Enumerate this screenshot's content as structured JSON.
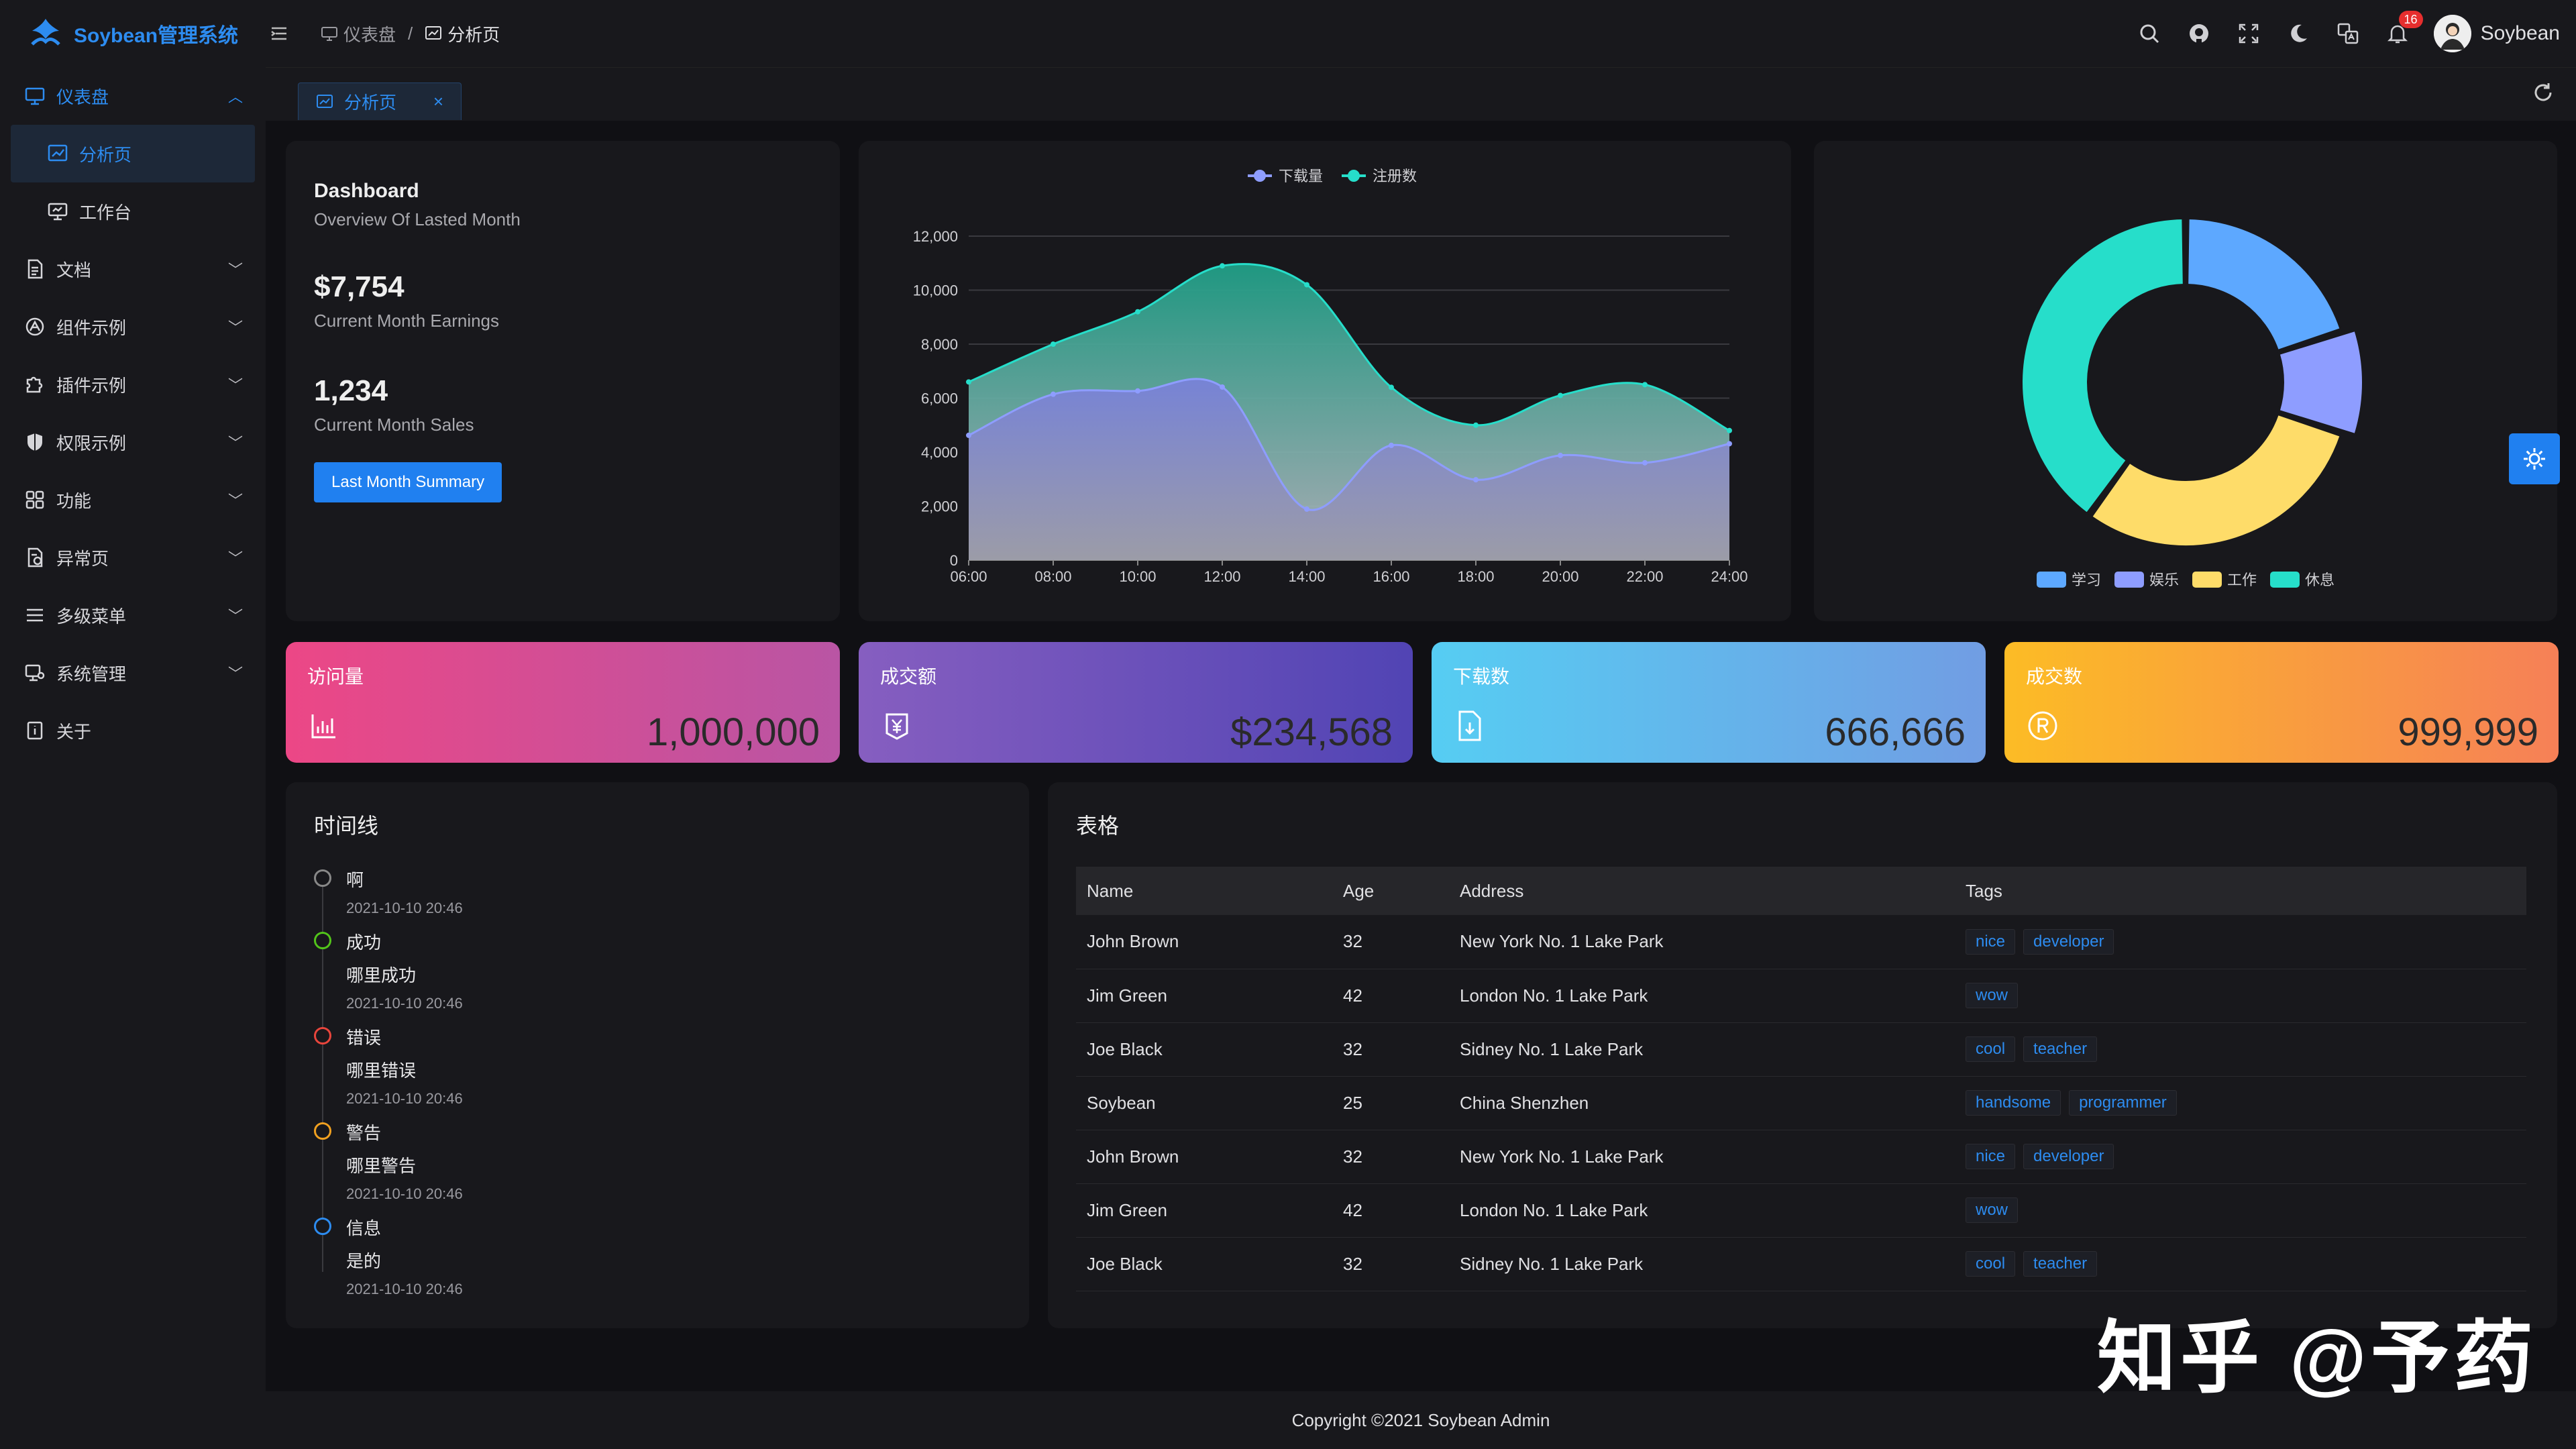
{
  "app": {
    "title": "Soybean管理系统"
  },
  "breadcrumb": [
    {
      "label": "仪表盘"
    },
    {
      "label": "分析页"
    }
  ],
  "header": {
    "notification_count": "16",
    "username": "Soybean"
  },
  "sidebar": {
    "items": [
      {
        "label": "仪表盘",
        "icon": "monitor-icon",
        "expanded": true
      },
      {
        "label": "分析页",
        "icon": "chart-board-icon",
        "selected": true
      },
      {
        "label": "工作台",
        "icon": "desktop-icon"
      },
      {
        "label": "文档",
        "icon": "document-icon"
      },
      {
        "label": "组件示例",
        "icon": "component-icon"
      },
      {
        "label": "插件示例",
        "icon": "puzzle-icon"
      },
      {
        "label": "权限示例",
        "icon": "shield-icon"
      },
      {
        "label": "功能",
        "icon": "grid-icon"
      },
      {
        "label": "异常页",
        "icon": "exception-icon"
      },
      {
        "label": "多级菜单",
        "icon": "list-icon"
      },
      {
        "label": "系统管理",
        "icon": "settings-monitor-icon"
      },
      {
        "label": "关于",
        "icon": "info-book-icon"
      }
    ]
  },
  "tabs": [
    {
      "label": "分析页",
      "close": "×"
    }
  ],
  "dashboard": {
    "title": "Dashboard",
    "subtitle": "Overview Of Lasted Month",
    "earnings": "$7,754",
    "earnings_label": "Current Month Earnings",
    "sales": "1,234",
    "sales_label": "Current Month Sales",
    "button": "Last Month Summary"
  },
  "chart_data": [
    {
      "type": "area",
      "legend_position": "top-center",
      "grid": true,
      "x": [
        "06:00",
        "08:00",
        "10:00",
        "12:00",
        "14:00",
        "16:00",
        "18:00",
        "20:00",
        "22:00",
        "24:00"
      ],
      "ylim": [
        0,
        12000
      ],
      "yticks": [
        "0",
        "2,000",
        "4,000",
        "6,000",
        "8,000",
        "10,000",
        "12,000"
      ],
      "series": [
        {
          "name": "下载量",
          "color": "#8e9dff",
          "values": [
            4623,
            6145,
            6268,
            6411,
            1890,
            4251,
            2978,
            3880,
            3606,
            4311
          ]
        },
        {
          "name": "注册数",
          "color": "#26deca",
          "values": [
            6600,
            8000,
            9200,
            10900,
            10200,
            6400,
            5000,
            6100,
            6500,
            4800
          ]
        }
      ]
    },
    {
      "type": "pie",
      "legend_position": "bottom",
      "categories": [
        "学习",
        "娱乐",
        "工作",
        "休息"
      ],
      "colors": [
        "#5da8ff",
        "#8e9dff",
        "#fedc69",
        "#26deca"
      ],
      "values": [
        20,
        10,
        30,
        40
      ]
    }
  ],
  "stats": [
    {
      "label": "访问量",
      "value": "1,000,000",
      "icon": "bar-chart-icon"
    },
    {
      "label": "成交额",
      "value": "$234,568",
      "icon": "money-icon"
    },
    {
      "label": "下载数",
      "value": "666,666",
      "icon": "download-file-icon"
    },
    {
      "label": "成交数",
      "value": "999,999",
      "icon": "registered-icon"
    }
  ],
  "timeline": {
    "title": "时间线",
    "items": [
      {
        "title": "啊",
        "content": "",
        "time": "2021-10-10 20:46",
        "color": "#888888"
      },
      {
        "title": "成功",
        "content": "哪里成功",
        "time": "2021-10-10 20:46",
        "color": "#52c41a"
      },
      {
        "title": "错误",
        "content": "哪里错误",
        "time": "2021-10-10 20:46",
        "color": "#e8453c"
      },
      {
        "title": "警告",
        "content": "哪里警告",
        "time": "2021-10-10 20:46",
        "color": "#f0a020"
      },
      {
        "title": "信息",
        "content": "是的",
        "time": "2021-10-10 20:46",
        "color": "#2d8cf0"
      }
    ]
  },
  "table": {
    "title": "表格",
    "columns": [
      "Name",
      "Age",
      "Address",
      "Tags"
    ],
    "rows": [
      {
        "name": "John Brown",
        "age": "32",
        "address": "New York No. 1 Lake Park",
        "tags": [
          "nice",
          "developer"
        ]
      },
      {
        "name": "Jim Green",
        "age": "42",
        "address": "London No. 1 Lake Park",
        "tags": [
          "wow"
        ]
      },
      {
        "name": "Joe Black",
        "age": "32",
        "address": "Sidney No. 1 Lake Park",
        "tags": [
          "cool",
          "teacher"
        ]
      },
      {
        "name": "Soybean",
        "age": "25",
        "address": "China Shenzhen",
        "tags": [
          "handsome",
          "programmer"
        ]
      },
      {
        "name": "John Brown",
        "age": "32",
        "address": "New York No. 1 Lake Park",
        "tags": [
          "nice",
          "developer"
        ]
      },
      {
        "name": "Jim Green",
        "age": "42",
        "address": "London No. 1 Lake Park",
        "tags": [
          "wow"
        ]
      },
      {
        "name": "Joe Black",
        "age": "32",
        "address": "Sidney No. 1 Lake Park",
        "tags": [
          "cool",
          "teacher"
        ]
      }
    ]
  },
  "footer": {
    "copyright": "Copyright ©2021 Soybean Admin"
  },
  "watermark": "知乎 @予药"
}
